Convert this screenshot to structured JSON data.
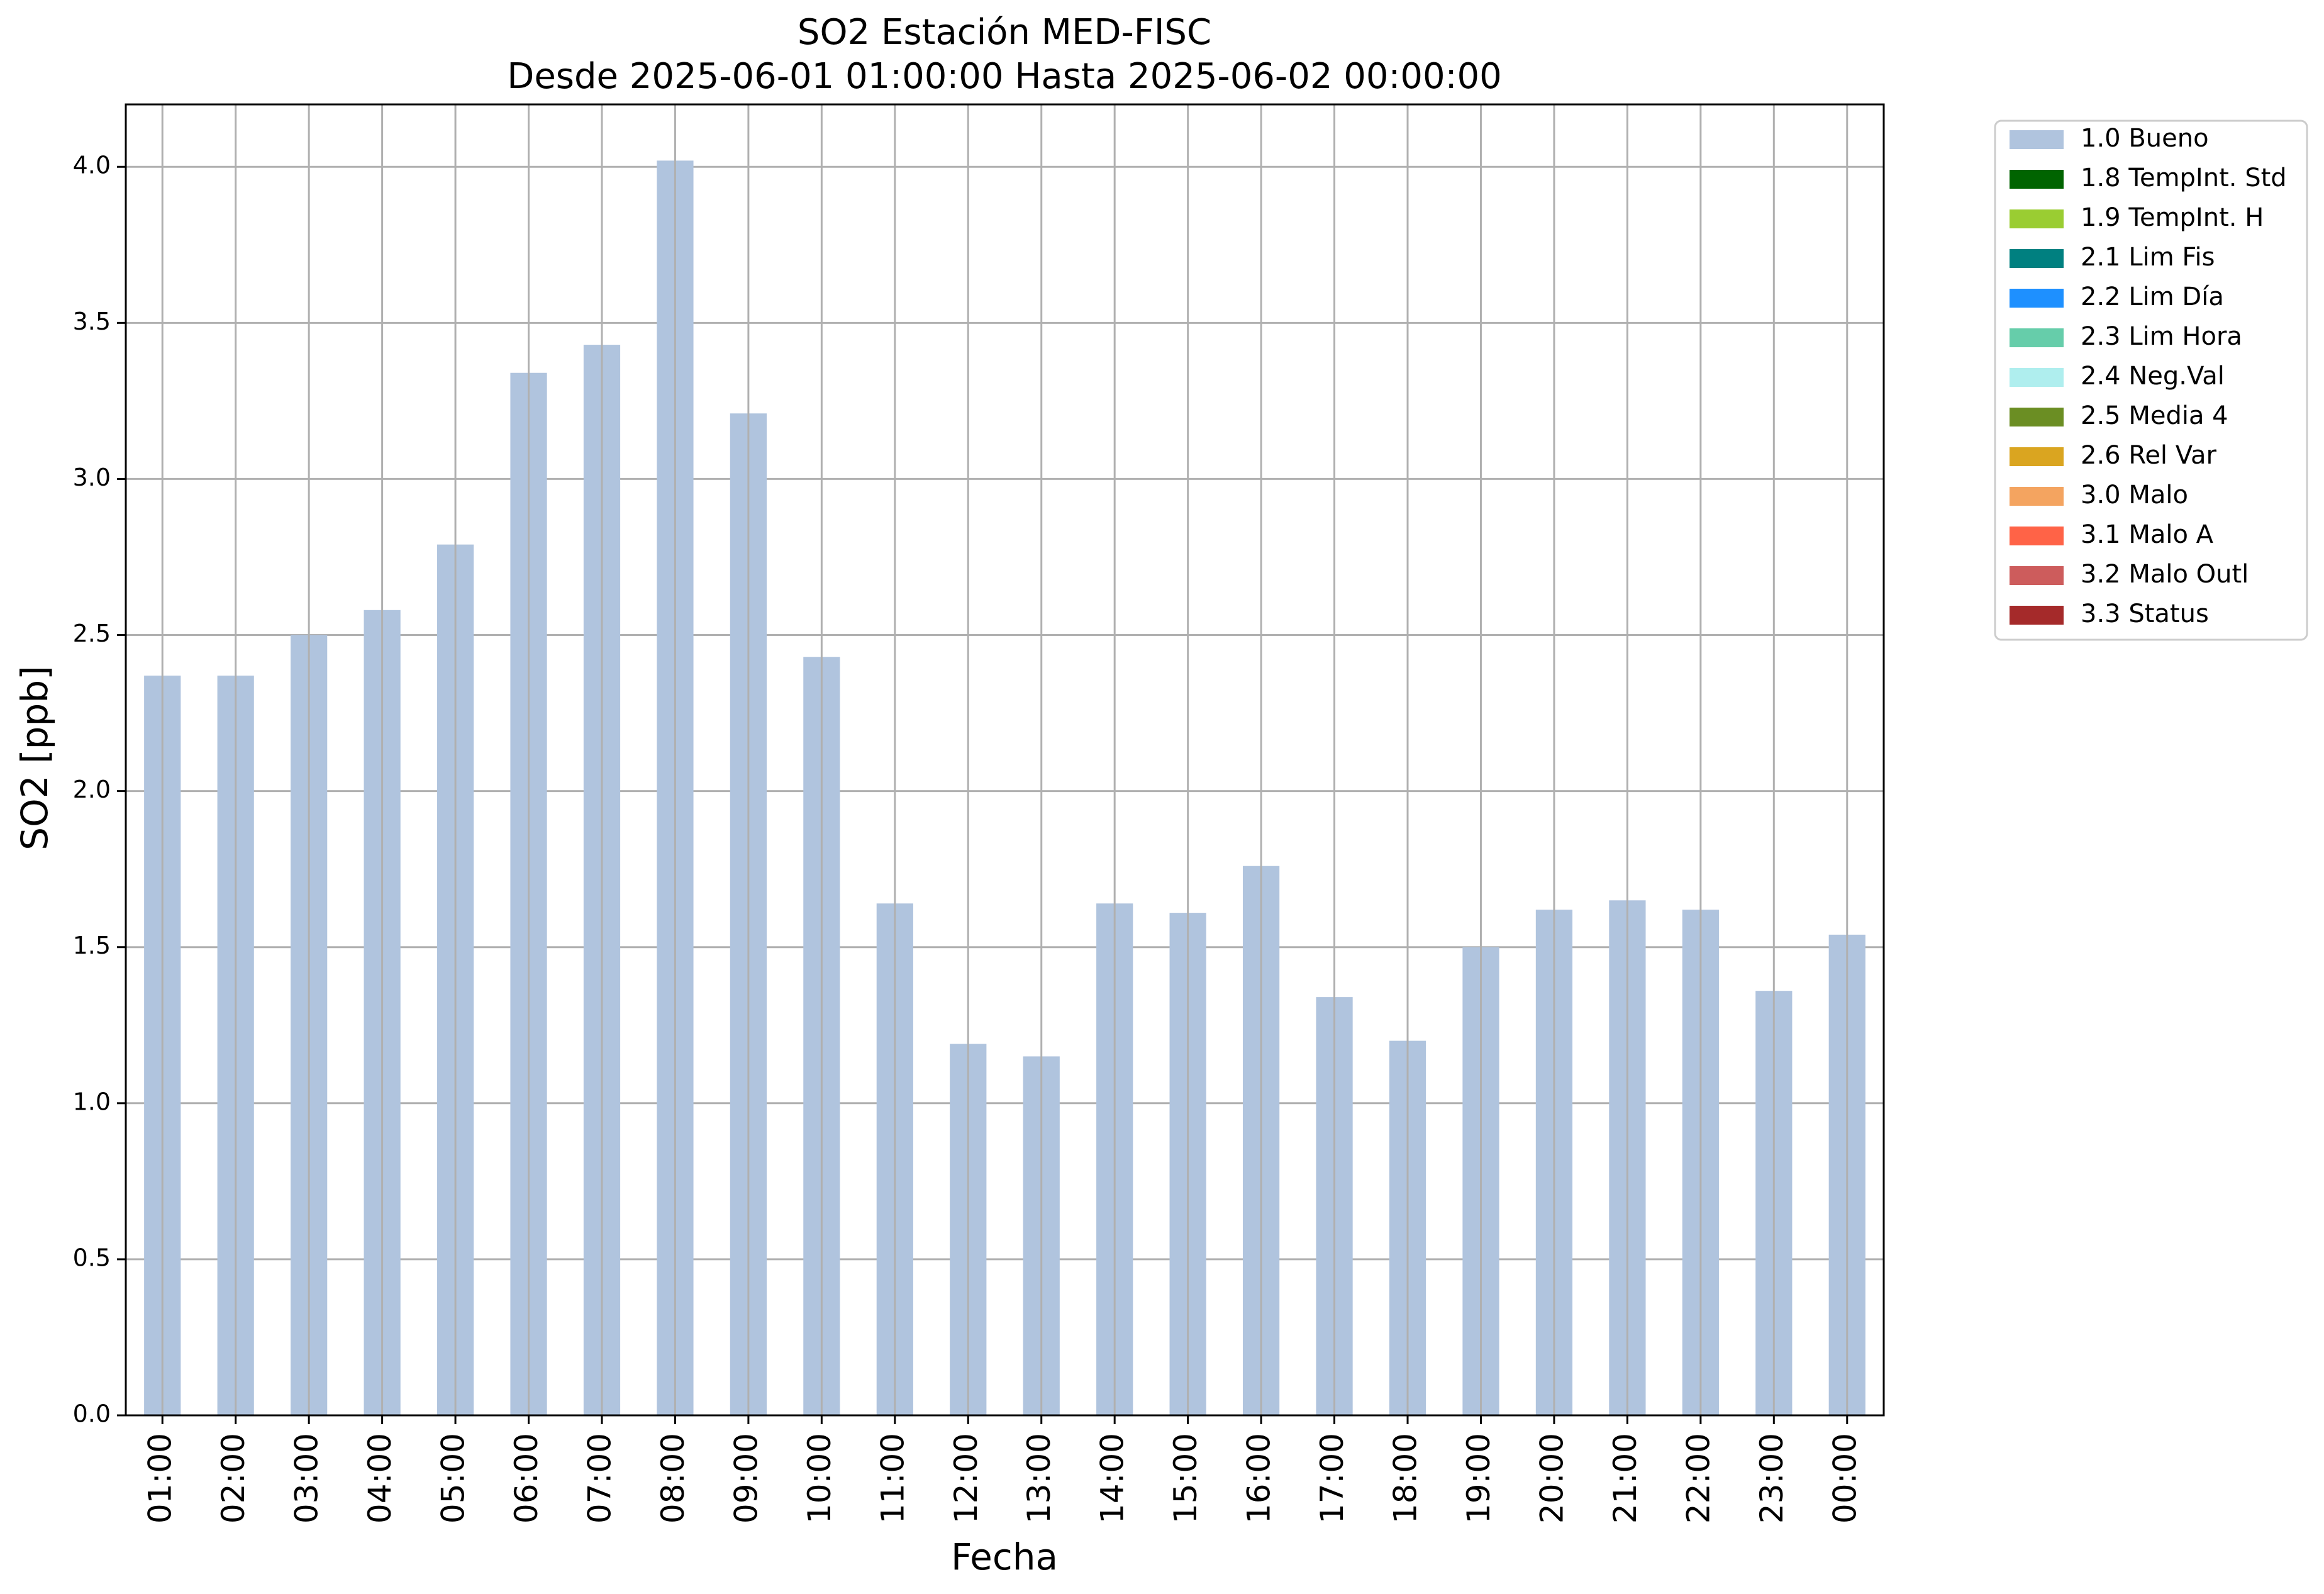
{
  "chart_data": {
    "type": "bar",
    "title": "SO2 Estación MED-FISC",
    "subtitle": "Desde 2025-06-01 01:00:00 Hasta 2025-06-02 00:00:00",
    "xlabel": "Fecha",
    "ylabel": "SO2 [ppb]",
    "ylim": [
      0,
      4.2
    ],
    "yticks": [
      "0.0",
      "0.5",
      "1.0",
      "1.5",
      "2.0",
      "2.5",
      "3.0",
      "3.5",
      "4.0"
    ],
    "grid": true,
    "legend_position": "outside-top-right",
    "categories": [
      "01:00",
      "02:00",
      "03:00",
      "04:00",
      "05:00",
      "06:00",
      "07:00",
      "08:00",
      "09:00",
      "10:00",
      "11:00",
      "12:00",
      "13:00",
      "14:00",
      "15:00",
      "16:00",
      "17:00",
      "18:00",
      "19:00",
      "20:00",
      "21:00",
      "22:00",
      "23:00",
      "00:00"
    ],
    "series": [
      {
        "name": "1.0 Bueno",
        "color": "#b0c4de",
        "values": [
          2.37,
          2.37,
          2.5,
          2.58,
          2.79,
          3.34,
          3.43,
          4.02,
          3.21,
          2.43,
          1.64,
          1.19,
          1.15,
          1.64,
          1.61,
          1.76,
          1.34,
          1.2,
          1.5,
          1.62,
          1.65,
          1.62,
          1.36,
          1.54
        ]
      }
    ],
    "legend": [
      {
        "label": "1.0 Bueno",
        "color": "#b0c4de"
      },
      {
        "label": "1.8 TempInt. Std",
        "color": "#006400"
      },
      {
        "label": "1.9 TempInt. H",
        "color": "#9acd32"
      },
      {
        "label": "2.1 Lim Fis",
        "color": "#008080"
      },
      {
        "label": "2.2 Lim Día",
        "color": "#1e90ff"
      },
      {
        "label": "2.3 Lim Hora",
        "color": "#66cdaa"
      },
      {
        "label": "2.4 Neg.Val",
        "color": "#afeeee"
      },
      {
        "label": "2.5 Media 4",
        "color": "#6b8e23"
      },
      {
        "label": "2.6 Rel Var",
        "color": "#daa520"
      },
      {
        "label": "3.0 Malo",
        "color": "#f4a460"
      },
      {
        "label": "3.1 Malo A",
        "color": "#ff6347"
      },
      {
        "label": "3.2 Malo Outl",
        "color": "#cd5c5c"
      },
      {
        "label": "3.3 Status",
        "color": "#a52a2a"
      }
    ]
  }
}
